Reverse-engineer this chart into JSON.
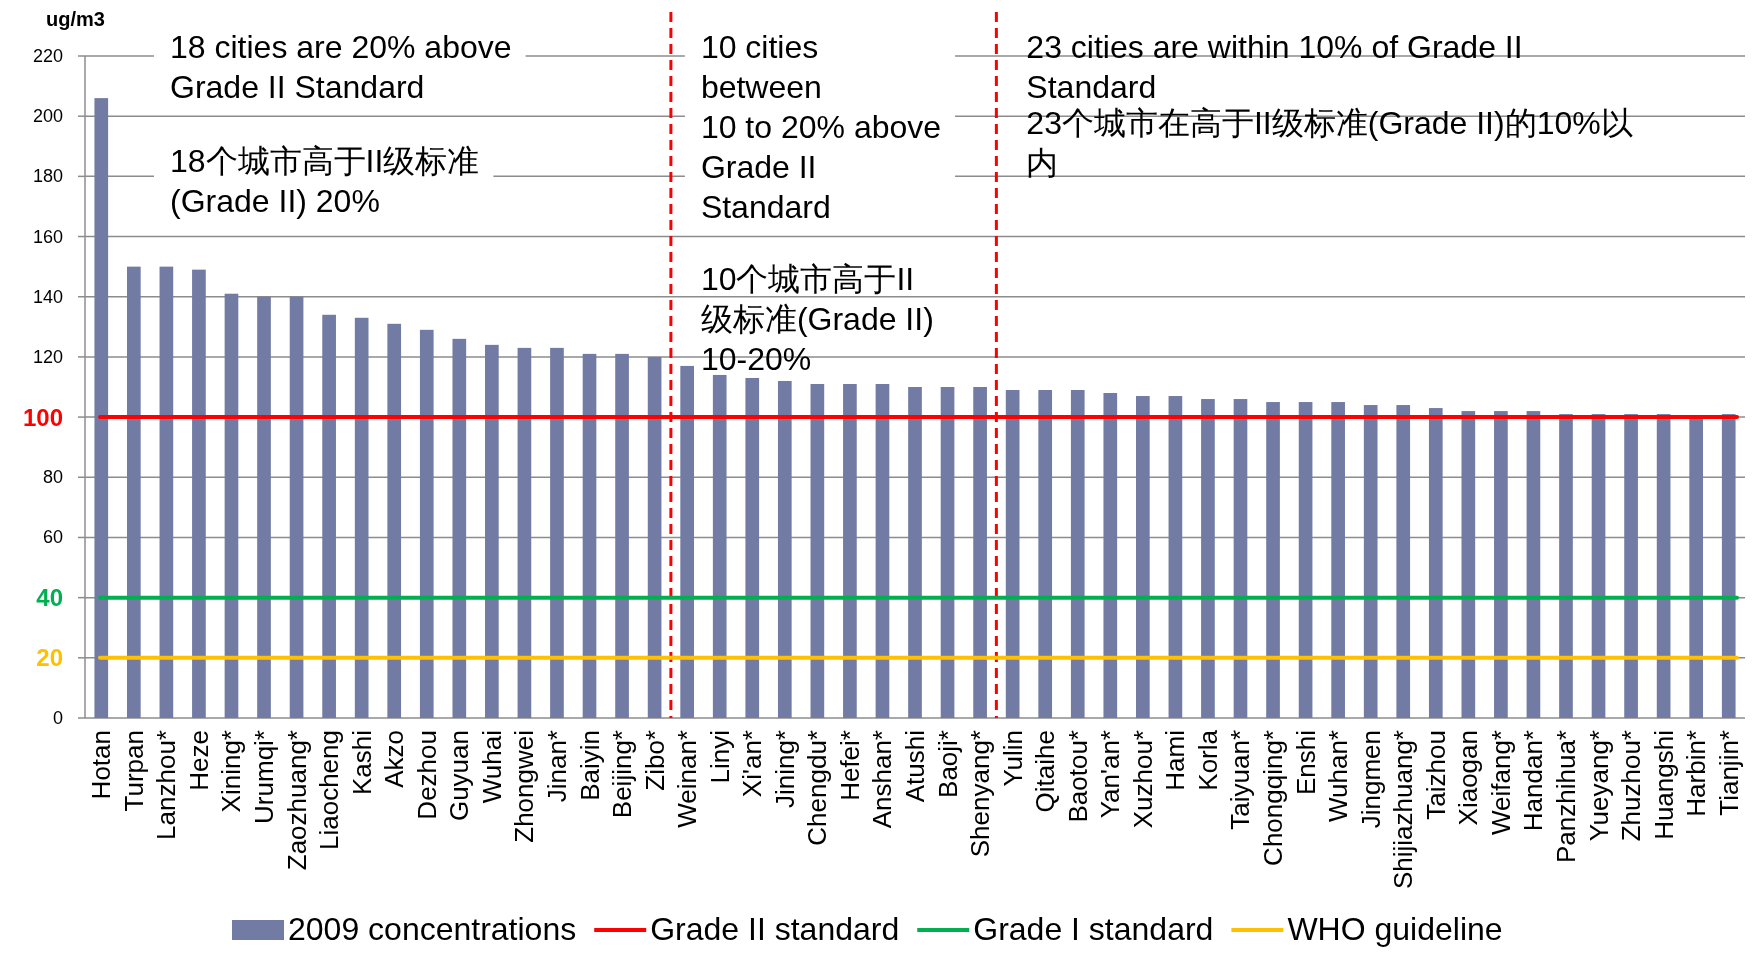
{
  "chart_data": {
    "type": "bar",
    "ylabel": "ug/m3",
    "categories": [
      "Hotan",
      "Turpan",
      "Lanzhou*",
      "Heze",
      "Xining*",
      "Urumqi*",
      "Zaozhuang*",
      "Liaocheng",
      "Kashi",
      "Akzo",
      "Dezhou",
      "Guyuan",
      "Wuhai",
      "Zhongwei",
      "Jinan*",
      "Baiyin",
      "Beijing*",
      "Zibo*",
      "Weinan*",
      "Linyi",
      "Xi'an*",
      "Jining*",
      "Chengdu*",
      "Hefei*",
      "Anshan*",
      "Atushi",
      "Baoji*",
      "Shenyang*",
      "Yulin",
      "Qitaihe",
      "Baotou*",
      "Yan'an*",
      "Xuzhou*",
      "Hami",
      "Korla",
      "Taiyuan*",
      "Chongqing*",
      "Enshi",
      "Wuhan*",
      "Jingmen",
      "Shijiazhuang*",
      "Taizhou",
      "Xiaogan",
      "Weifang*",
      "Handan*",
      "Panzhihua*",
      "Yueyang*",
      "Zhuzhou*",
      "Huangshi",
      "Harbin*",
      "Tianjin*"
    ],
    "series": [
      {
        "name": "2009 concentrations",
        "color": "#717ba3",
        "values": [
          206,
          150,
          150,
          149,
          141,
          140,
          140,
          134,
          133,
          131,
          129,
          126,
          124,
          123,
          123,
          121,
          121,
          120,
          117,
          114,
          113,
          112,
          111,
          111,
          111,
          110,
          110,
          110,
          109,
          109,
          109,
          108,
          107,
          107,
          106,
          106,
          105,
          105,
          105,
          104,
          104,
          103,
          102,
          102,
          102,
          101,
          101,
          101,
          101,
          100,
          101
        ]
      }
    ],
    "ylim": [
      0,
      220
    ],
    "yticks": [
      0,
      20,
      40,
      60,
      80,
      100,
      120,
      140,
      160,
      180,
      200,
      220
    ],
    "grid": "y",
    "legend": "bottom",
    "ref_lines": [
      {
        "axis": "y",
        "value": 100,
        "label": "Grade II standard",
        "color": "#ff0000",
        "line_style": "solid"
      },
      {
        "axis": "y",
        "value": 40,
        "label": "Grade I standard",
        "color": "#00b050",
        "line_style": "solid"
      },
      {
        "axis": "y",
        "value": 20,
        "label": "WHO guideline",
        "color": "#ffc000",
        "line_style": "solid"
      }
    ],
    "annotations": [
      "18 cities are 20% above\nGrade II Standard",
      "18个城市高于II级标准(Grade II) 20%",
      "10 cities\nbetween\n10 to 20% above\nGrade II\nStandard",
      "10个城市高于II级标准(Grade II) 10-20%",
      "23 cities are within 10% of Grade II\nStandard",
      "23个城市在高于II级标准(Grade II)的10%以内"
    ]
  }
}
